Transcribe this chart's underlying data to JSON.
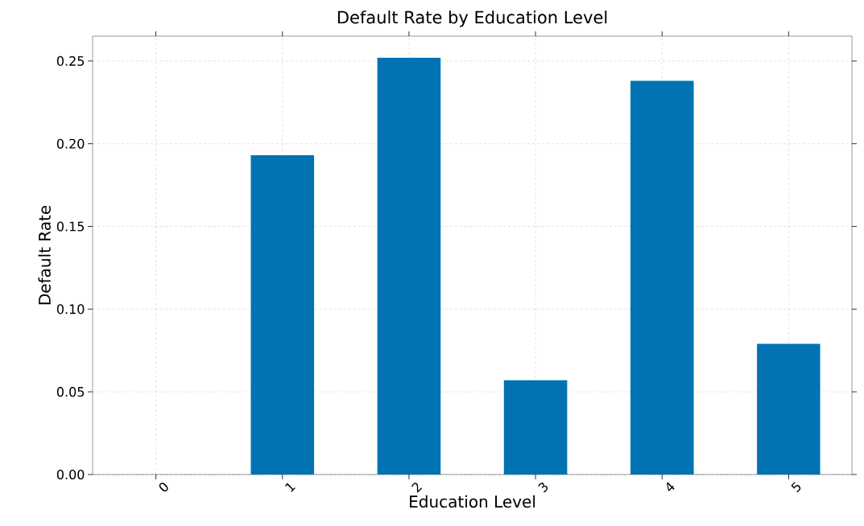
{
  "chart_data": {
    "type": "bar",
    "title": "Default Rate by Education Level",
    "xlabel": "Education Level",
    "ylabel": "Default Rate",
    "categories": [
      "0",
      "1",
      "2",
      "3",
      "4",
      "5"
    ],
    "values": [
      0,
      0.193,
      0.252,
      0.057,
      0.238,
      0.079
    ],
    "color": "#0173b3",
    "ylim": [
      0,
      0.265
    ],
    "yticks": [
      {
        "value": 0,
        "label": "0.00"
      },
      {
        "value": 0.05,
        "label": "0.05"
      },
      {
        "value": 0.1,
        "label": "0.10"
      },
      {
        "value": 0.15,
        "label": "0.15"
      },
      {
        "value": 0.2,
        "label": "0.20"
      },
      {
        "value": 0.25,
        "label": "0.25"
      }
    ],
    "grid": true
  }
}
